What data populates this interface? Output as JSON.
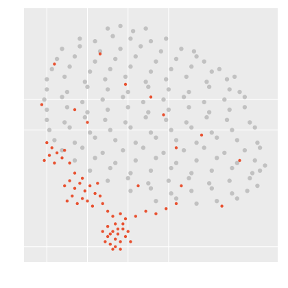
{
  "chart_data": {
    "type": "scatter",
    "xlim": [
      0,
      100
    ],
    "ylim": [
      0,
      100
    ],
    "xticks": [
      9,
      25,
      41,
      57
    ],
    "yticks": [
      6,
      52,
      64
    ],
    "grid": true,
    "series": [
      {
        "color": "#bdbdbd",
        "x": [
          33,
          38,
          43,
          48,
          22,
          28,
          35,
          42,
          50,
          56,
          15,
          22,
          30,
          38,
          46,
          54,
          62,
          67,
          13,
          20,
          28,
          36,
          44,
          52,
          60,
          68,
          71,
          11,
          18,
          26,
          34,
          42,
          50,
          58,
          66,
          74,
          77,
          9,
          16,
          24,
          32,
          40,
          48,
          56,
          64,
          72,
          80,
          83,
          9,
          17,
          25,
          33,
          41,
          49,
          57,
          65,
          73,
          81,
          85,
          8,
          15,
          23,
          31,
          39,
          47,
          55,
          63,
          71,
          79,
          87,
          9,
          17,
          25,
          33,
          41,
          49,
          57,
          65,
          73,
          81,
          87,
          9,
          16,
          24,
          32,
          40,
          48,
          56,
          64,
          72,
          80,
          89,
          10,
          18,
          26,
          34,
          42,
          50,
          58,
          66,
          74,
          82,
          91,
          12,
          20,
          28,
          36,
          44,
          52,
          60,
          68,
          76,
          84,
          92,
          15,
          23,
          31,
          39,
          47,
          55,
          63,
          71,
          79,
          87,
          93,
          20,
          28,
          36,
          44,
          52,
          60,
          68,
          76,
          84,
          91,
          95,
          26,
          34,
          42,
          50,
          58,
          66,
          74,
          82,
          90,
          93,
          33,
          41,
          49,
          57,
          65,
          73,
          81,
          89,
          92,
          42,
          50,
          58,
          66,
          74,
          82,
          88,
          52,
          60,
          68,
          76,
          84
        ],
        "values": [
          92,
          93,
          91,
          92,
          88,
          87,
          89,
          88,
          87,
          88,
          84,
          85,
          83,
          84,
          85,
          83,
          84,
          83,
          80,
          81,
          79,
          80,
          81,
          79,
          80,
          81,
          79,
          76,
          77,
          75,
          76,
          77,
          75,
          76,
          77,
          75,
          76,
          72,
          73,
          71,
          72,
          73,
          71,
          72,
          73,
          71,
          72,
          73,
          68,
          67,
          69,
          68,
          67,
          69,
          68,
          67,
          69,
          68,
          67,
          64,
          65,
          63,
          64,
          65,
          63,
          64,
          65,
          63,
          64,
          65,
          60,
          61,
          59,
          60,
          61,
          59,
          60,
          61,
          59,
          60,
          61,
          56,
          55,
          57,
          56,
          55,
          57,
          56,
          55,
          57,
          56,
          55,
          52,
          53,
          51,
          52,
          53,
          51,
          52,
          53,
          51,
          52,
          53,
          48,
          47,
          49,
          48,
          47,
          49,
          48,
          47,
          49,
          48,
          47,
          44,
          45,
          43,
          44,
          45,
          43,
          44,
          45,
          43,
          44,
          45,
          40,
          41,
          39,
          40,
          41,
          39,
          40,
          41,
          39,
          40,
          38,
          36,
          37,
          35,
          36,
          37,
          35,
          36,
          37,
          35,
          36,
          32,
          33,
          31,
          32,
          33,
          31,
          32,
          33,
          30,
          28,
          29,
          27,
          28,
          29,
          27,
          28,
          24,
          25,
          23,
          24,
          25
        ]
      },
      {
        "color": "#e8401c",
        "x": [
          8,
          10,
          11,
          13,
          15,
          12,
          16,
          9,
          18,
          7,
          16,
          18,
          20,
          22,
          24,
          19,
          17,
          21,
          23,
          26,
          28,
          25,
          27,
          30,
          29,
          23,
          20,
          31,
          33,
          35,
          38,
          40,
          44,
          48,
          52,
          56,
          60,
          31,
          33,
          35,
          37,
          39,
          32,
          34,
          36,
          38,
          40,
          33,
          36,
          38,
          35,
          41,
          42,
          39,
          34,
          37,
          36,
          30,
          12,
          40,
          55,
          70,
          60,
          45,
          62,
          78,
          85,
          50,
          25,
          20
        ],
        "values": [
          40,
          42,
          45,
          43,
          41,
          39,
          44,
          47,
          39,
          62,
          30,
          32,
          29,
          31,
          28,
          26,
          24,
          23,
          25,
          30,
          27,
          24,
          22,
          26,
          31,
          33,
          35,
          23,
          20,
          18,
          19,
          17,
          18,
          20,
          19,
          21,
          23,
          12,
          10,
          12,
          11,
          13,
          8,
          7,
          9,
          8,
          10,
          14,
          15,
          5,
          5,
          12,
          8,
          15,
          11,
          13,
          6,
          82,
          78,
          70,
          58,
          50,
          45,
          30,
          30,
          22,
          40,
          65,
          55,
          60
        ]
      }
    ]
  }
}
